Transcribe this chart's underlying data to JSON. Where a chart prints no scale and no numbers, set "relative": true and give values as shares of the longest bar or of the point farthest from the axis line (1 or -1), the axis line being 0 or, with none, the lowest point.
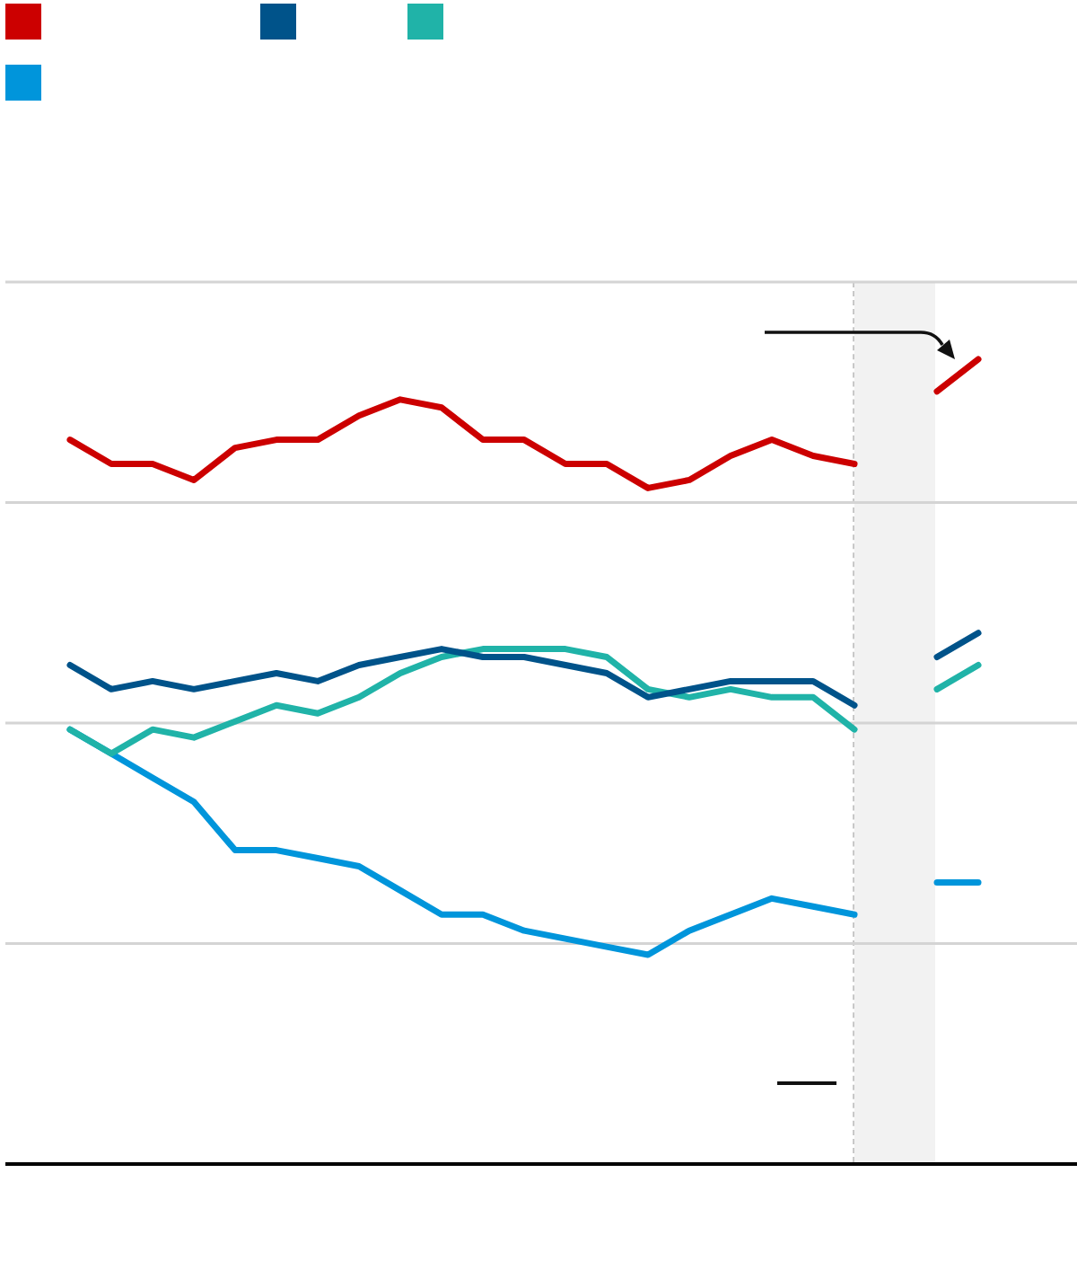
{
  "chart_data": {
    "type": "line",
    "relative": true,
    "marker": "none",
    "line_style": "solid",
    "categories": [
      null,
      null,
      null,
      null,
      null,
      null,
      null,
      null,
      null,
      null,
      null,
      null,
      null,
      null,
      null,
      null,
      null,
      null,
      null,
      null,
      null,
      null,
      null
    ],
    "series": [
      {
        "color": "#cc0000",
        "values": [
          0.9,
          0.87,
          0.87,
          0.85,
          0.89,
          0.9,
          0.9,
          0.93,
          0.95,
          0.94,
          0.9,
          0.9,
          0.87,
          0.87,
          0.84,
          0.85,
          0.88,
          0.9,
          0.88,
          0.87,
          null,
          null,
          null
        ]
      },
      {
        "color": "#00538a",
        "values": [
          0.62,
          0.59,
          0.6,
          0.59,
          0.6,
          0.61,
          0.6,
          0.62,
          0.63,
          0.64,
          0.63,
          0.63,
          0.62,
          0.61,
          0.58,
          0.59,
          0.6,
          0.6,
          0.6,
          0.57,
          null,
          null,
          null
        ]
      },
      {
        "color": "#20b3a8",
        "values": [
          0.54,
          0.51,
          0.54,
          0.53,
          0.55,
          0.57,
          0.56,
          0.58,
          0.61,
          0.63,
          0.64,
          0.64,
          0.64,
          0.63,
          0.59,
          0.58,
          0.59,
          0.58,
          0.58,
          0.54,
          null,
          null,
          null
        ]
      },
      {
        "color": "#0095db",
        "values": [
          0.54,
          0.51,
          0.48,
          0.45,
          0.39,
          0.39,
          0.38,
          0.37,
          0.34,
          0.31,
          0.31,
          0.29,
          0.28,
          0.27,
          0.26,
          0.29,
          0.31,
          0.33,
          0.32,
          0.31,
          null,
          null,
          null
        ]
      },
      {
        "color": "#cc0000",
        "values": [
          null,
          null,
          null,
          null,
          null,
          null,
          null,
          null,
          null,
          null,
          null,
          null,
          null,
          null,
          null,
          null,
          null,
          null,
          null,
          null,
          null,
          0.96,
          1.0
        ]
      },
      {
        "color": "#00538a",
        "values": [
          null,
          null,
          null,
          null,
          null,
          null,
          null,
          null,
          null,
          null,
          null,
          null,
          null,
          null,
          null,
          null,
          null,
          null,
          null,
          null,
          null,
          0.63,
          0.66
        ]
      },
      {
        "color": "#20b3a8",
        "values": [
          null,
          null,
          null,
          null,
          null,
          null,
          null,
          null,
          null,
          null,
          null,
          null,
          null,
          null,
          null,
          null,
          null,
          null,
          null,
          null,
          null,
          0.59,
          0.62
        ]
      },
      {
        "color": "#0095db",
        "values": [
          null,
          null,
          null,
          null,
          null,
          null,
          null,
          null,
          null,
          null,
          null,
          null,
          null,
          null,
          null,
          null,
          null,
          null,
          null,
          null,
          null,
          0.35,
          0.35
        ]
      }
    ]
  }
}
